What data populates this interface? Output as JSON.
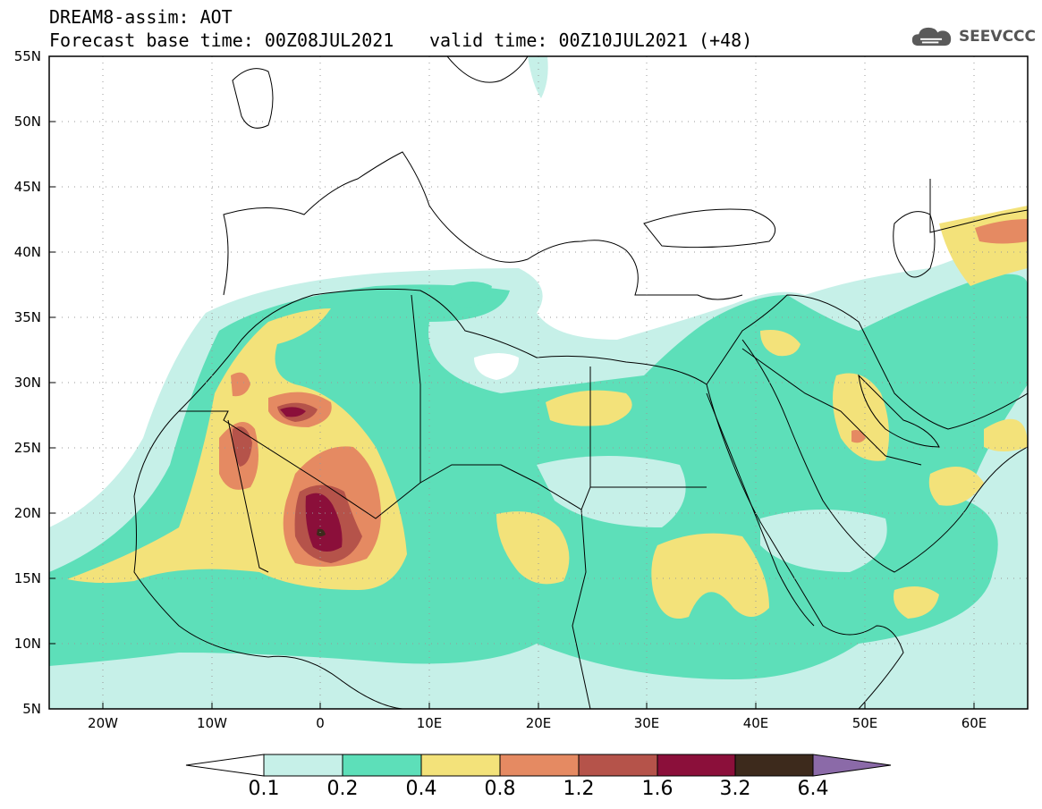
{
  "header": {
    "title": "DREAM8-assim: AOT",
    "base_time": "Forecast base time: 00Z08JUL2021",
    "valid_time": "valid time: 00Z10JUL2021 (+48)"
  },
  "logo": {
    "text": "SEEVCCC",
    "icon": "cloud-icon"
  },
  "map": {
    "lat_labels": [
      "55N",
      "50N",
      "45N",
      "40N",
      "35N",
      "30N",
      "25N",
      "20N",
      "15N",
      "10N",
      "5N"
    ],
    "lon_labels": [
      "20W",
      "10W",
      "0",
      "10E",
      "20E",
      "30E",
      "40E",
      "50E",
      "60E"
    ],
    "background": "#ffffff",
    "border_color": "#000000"
  },
  "colorbar": {
    "labels": [
      "0.1",
      "0.2",
      "0.4",
      "0.8",
      "1.2",
      "1.6",
      "3.2",
      "6.4"
    ],
    "colors": [
      "#c6f0e8",
      "#5ddfb9",
      "#f3e27a",
      "#e58a62",
      "#b5534a",
      "#8b0f3a",
      "#3d2a1c",
      "#8b6aa8"
    ],
    "under_color": "#ffffff"
  }
}
